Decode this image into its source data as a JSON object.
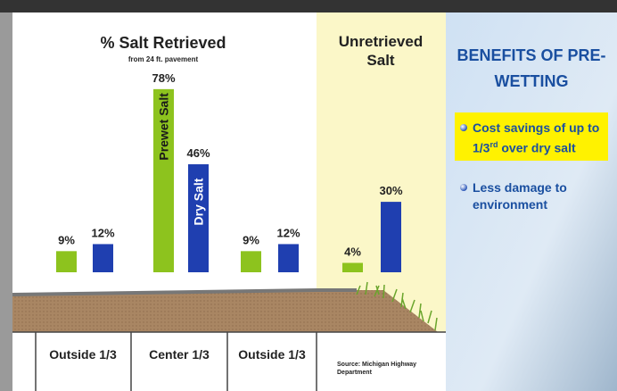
{
  "chart_data": {
    "type": "bar",
    "title": "% Salt Retrieved",
    "subtitle": "from 24 ft. pavement",
    "annotation": "Unretrieved Salt",
    "source": "Source: Michigan Highway Department",
    "categories": [
      "Outside 1/3",
      "Center 1/3",
      "Outside 1/3",
      null
    ],
    "series": [
      {
        "name": "Prewet Salt",
        "color": "#8dc31e",
        "values": [
          9,
          78,
          9,
          4
        ],
        "value_labels": [
          "9%",
          "78%",
          "9%",
          "4%"
        ]
      },
      {
        "name": "Dry Salt",
        "color": "#1f3fb0",
        "values": [
          12,
          46,
          12,
          30
        ],
        "value_labels": [
          "12%",
          "46%",
          "12%",
          "30%"
        ]
      }
    ]
  },
  "panel": {
    "title": "BENEFITS OF PRE-WETTING",
    "bullets": [
      {
        "text": "Cost savings of up to 1/3",
        "sup": "rd",
        "tail": " over dry salt"
      },
      {
        "text": "Less damage to environment"
      }
    ]
  }
}
